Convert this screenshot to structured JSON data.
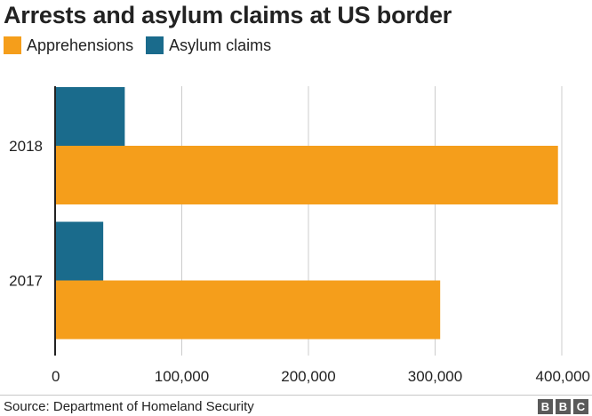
{
  "title": "Arrests and asylum claims at US border",
  "legend": [
    {
      "label": "Apprehensions",
      "color": "#f59e1b"
    },
    {
      "label": "Asylum claims",
      "color": "#1a6b8c"
    }
  ],
  "source": "Source: Department of Homeland Security",
  "logo": [
    "B",
    "B",
    "C"
  ],
  "chart_data": {
    "type": "bar",
    "orientation": "horizontal",
    "title": "Arrests and asylum claims at US border",
    "categories": [
      "2018",
      "2017"
    ],
    "series": [
      {
        "name": "Asylum claims",
        "color": "#1a6b8c",
        "values": [
          55000,
          38000
        ]
      },
      {
        "name": "Apprehensions",
        "color": "#f59e1b",
        "values": [
          397000,
          304000
        ]
      }
    ],
    "xlim": [
      0,
      400000
    ],
    "xticks": [
      0,
      100000,
      200000,
      300000,
      400000
    ],
    "xtick_labels": [
      "0",
      "100,000",
      "200,000",
      "300,000",
      "400,000"
    ],
    "grid": true,
    "legend_position": "top-left"
  }
}
